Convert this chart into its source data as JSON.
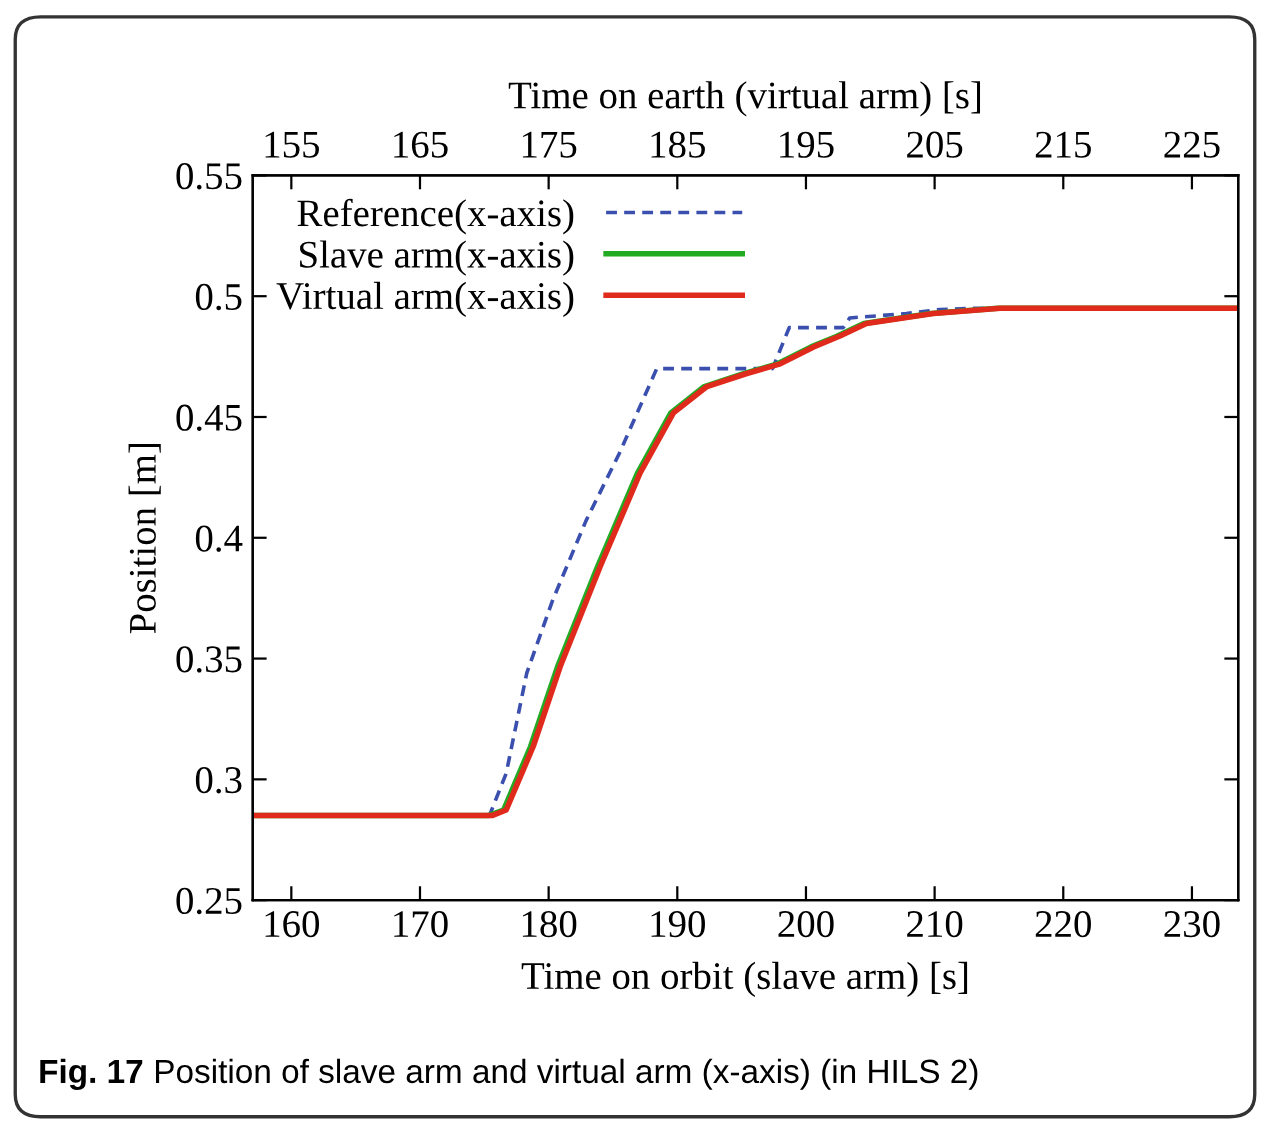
{
  "chart_data": {
    "type": "line",
    "xlabel": "Time on orbit (slave arm) [s]",
    "x2label": "Time on earth (virtual arm) [s]",
    "ylabel": "Position [m]",
    "xlim": [
      157,
      233.6
    ],
    "xticks": [
      160,
      170,
      180,
      190,
      200,
      210,
      220,
      230
    ],
    "x2lim": [
      152,
      228.6
    ],
    "x2ticks": [
      155,
      165,
      175,
      185,
      195,
      205,
      215,
      225
    ],
    "ylim": [
      0.25,
      0.55
    ],
    "yticks": [
      0.25,
      0.3,
      0.35,
      0.4,
      0.45,
      0.5,
      0.55
    ],
    "grid": false,
    "legend": "top left",
    "series": [
      {
        "name": "Reference(x-axis)",
        "color": "#3a4fae",
        "line_style": "dashed",
        "x": [
          157,
          175.4,
          176.7,
          178.3,
          180.3,
          182.9,
          185.5,
          188.4,
          197.4,
          198.7,
          202.9,
          203.4,
          207.8,
          210.4,
          213,
          233.6
        ],
        "values": [
          0.285,
          0.285,
          0.3025,
          0.344,
          0.374,
          0.407,
          0.435,
          0.47,
          0.47,
          0.487,
          0.487,
          0.491,
          0.4928,
          0.4945,
          0.495,
          0.495
        ]
      },
      {
        "name": "Slave arm(x-axis)",
        "color": "#22aa22",
        "line_style": "solid",
        "x": [
          157,
          175.3,
          176.5,
          178.6,
          180.7,
          183.8,
          186.9,
          189.5,
          192.1,
          195.2,
          197.8,
          200.4,
          202.4,
          204.5,
          209.7,
          214.9,
          233.6
        ],
        "values": [
          0.285,
          0.285,
          0.2873,
          0.3136,
          0.3467,
          0.388,
          0.4267,
          0.4517,
          0.4626,
          0.468,
          0.472,
          0.479,
          0.4834,
          0.4887,
          0.4928,
          0.495,
          0.495
        ]
      },
      {
        "name": "Virtual arm(x-axis)",
        "color": "#e02a1c",
        "line_style": "solid",
        "x": [
          157,
          175.6,
          176.7,
          178.8,
          180.9,
          184.0,
          187.1,
          189.7,
          192.3,
          195.4,
          198.0,
          200.6,
          202.6,
          204.7,
          209.9,
          215.1,
          233.6
        ],
        "values": [
          0.285,
          0.285,
          0.2873,
          0.3136,
          0.3467,
          0.388,
          0.4267,
          0.4517,
          0.4626,
          0.468,
          0.472,
          0.479,
          0.4834,
          0.4887,
          0.4928,
          0.495,
          0.495
        ]
      }
    ],
    "annotations": [
      "Fig. 17  Position of slave arm and virtual arm (x-axis) (in HILS 2)"
    ]
  }
}
